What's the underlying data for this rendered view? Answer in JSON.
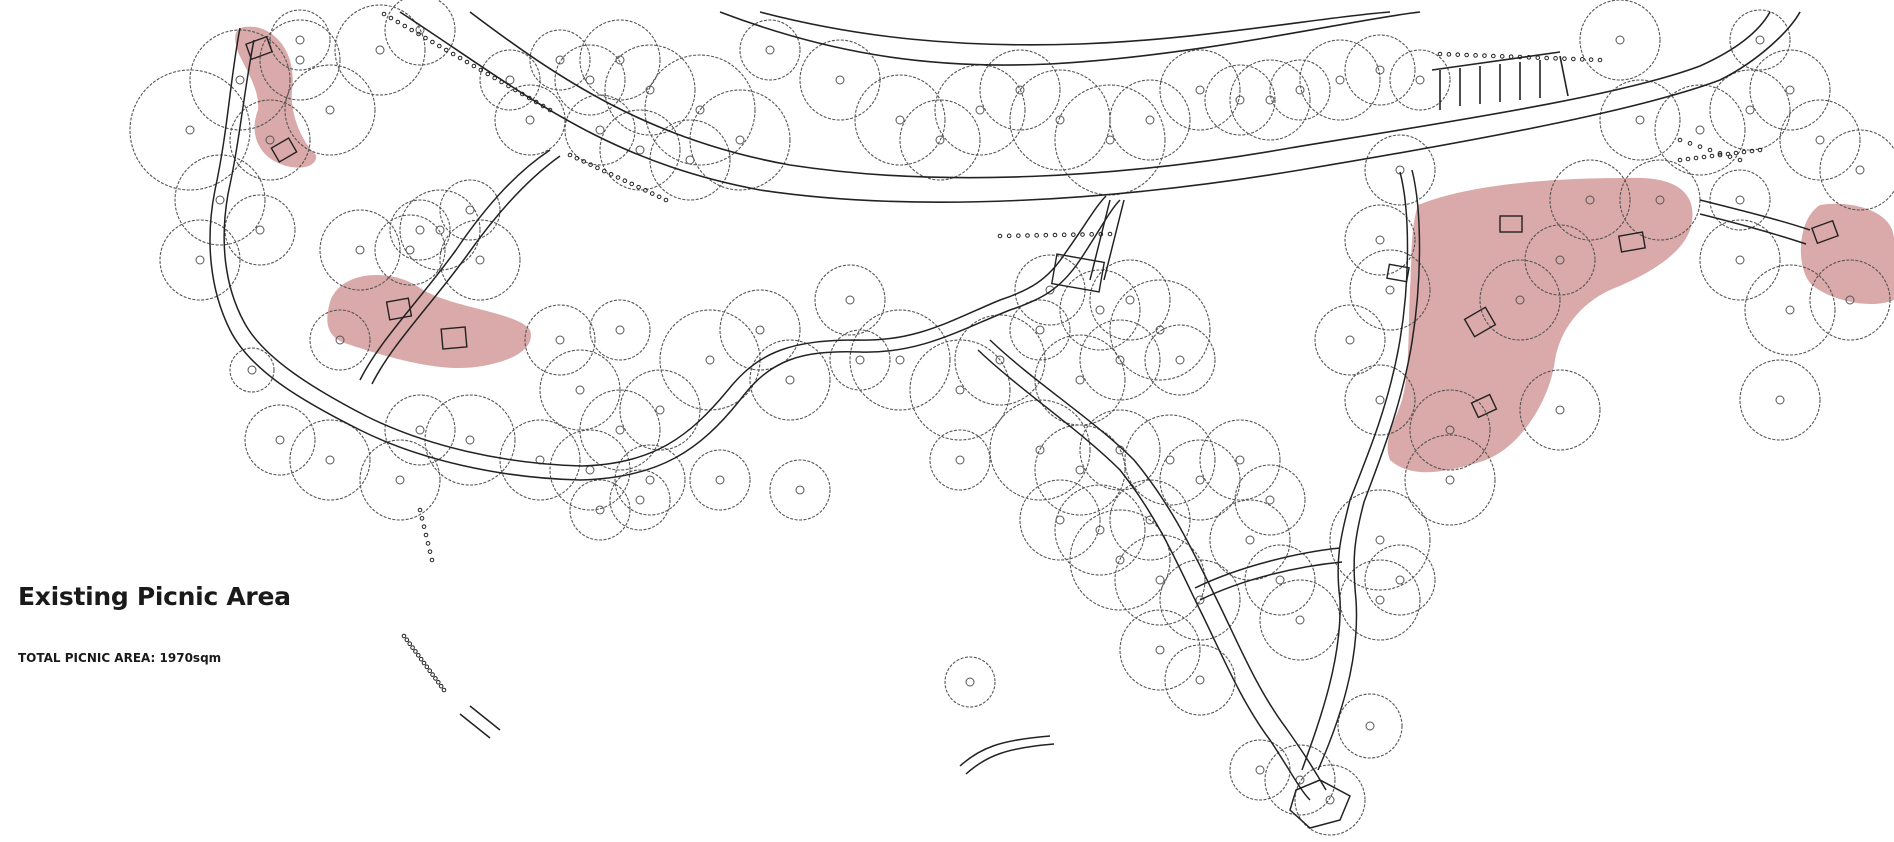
{
  "title": "Existing Picnic Area",
  "total_area_text": "TOTAL PICNIC AREA: 1970sqm",
  "colors": {
    "picnic_zone": "#b5535380",
    "line": "#222222",
    "tree_canopy": "#555555",
    "background": "#ffffff"
  }
}
